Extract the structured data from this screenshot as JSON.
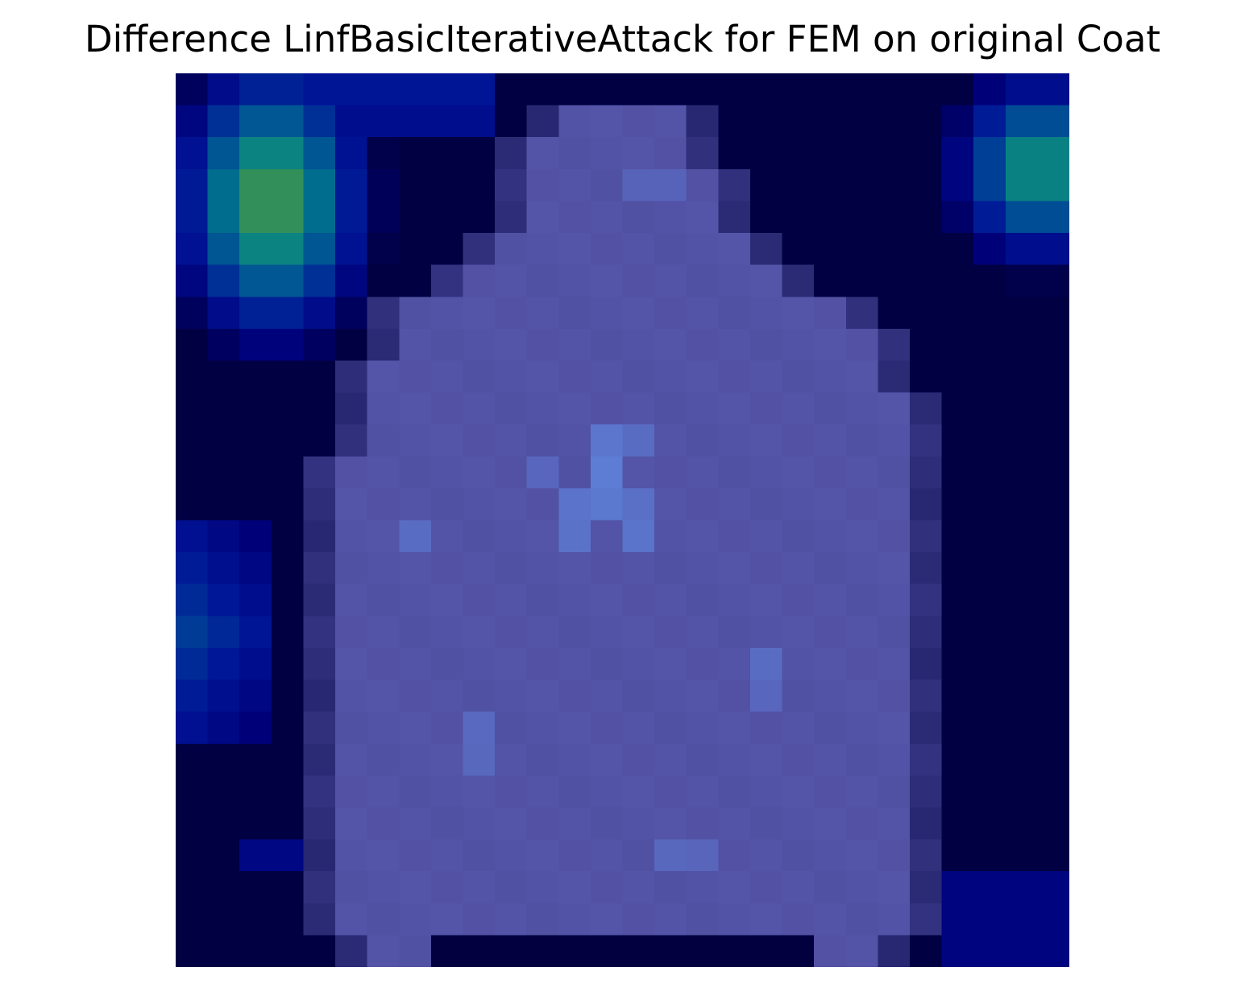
{
  "title": "Difference LinfBasicIterativeAttack for FEM on original Coat",
  "colors": {
    "background": "#ffffff",
    "text": "#000000",
    "darkest": "#01003b",
    "garment_tint": "#6f6fbf",
    "highlight_blue": "#63a0f5",
    "corner_green": "#80900f"
  }
}
